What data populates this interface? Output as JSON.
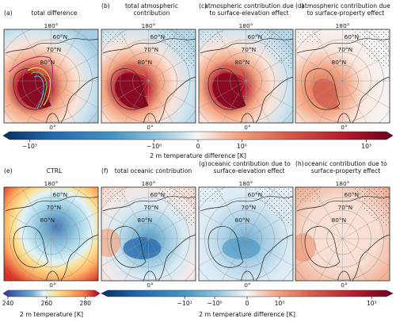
{
  "panels": [
    {
      "id": "a",
      "letter": "(a)",
      "title": [
        "total difference"
      ],
      "lon_label": "180°",
      "lat_labels": [
        "60°N",
        "70°N",
        "80°N"
      ],
      "bottom_label": "0°",
      "field": "total"
    },
    {
      "id": "b",
      "letter": "(b)",
      "title": [
        "total atmospheric",
        "contribution"
      ],
      "lon_label": "180°",
      "lat_labels": [
        "60°N",
        "70°N",
        "80°N"
      ],
      "bottom_label": "0°",
      "field": "atm"
    },
    {
      "id": "c",
      "letter": "(c)",
      "title": [
        "atmospheric contribution due",
        "to surface-elevation effect"
      ],
      "lon_label": "180°",
      "lat_labels": [
        "60°N",
        "70°N",
        "80°N"
      ],
      "bottom_label": "0°",
      "field": "atm_elev"
    },
    {
      "id": "d",
      "letter": "(d)",
      "title": [
        "atmospheric contribution due",
        "to surface-property effect"
      ],
      "lon_label": "180°",
      "lat_labels": [
        "60°N",
        "70°N",
        "80°N"
      ],
      "bottom_label": "0°",
      "field": "atm_prop"
    },
    {
      "id": "e",
      "letter": "(e)",
      "title": [
        "CTRL"
      ],
      "lon_label": "180°",
      "lat_labels": [
        "60°N",
        "70°N",
        "80°N"
      ],
      "bottom_label": "0°",
      "field": "ctrl"
    },
    {
      "id": "f",
      "letter": "(f)",
      "title": [
        "total oceanic contribution"
      ],
      "lon_label": "180°",
      "lat_labels": [
        "60°N",
        "70°N",
        "80°N"
      ],
      "bottom_label": "0°",
      "field": "ocn"
    },
    {
      "id": "g",
      "letter": "(g)",
      "title": [
        "oceanic contribution due to",
        "surface-elevation effect"
      ],
      "lon_label": "180°",
      "lat_labels": [
        "60°N",
        "70°N",
        "80°N"
      ],
      "bottom_label": "0°",
      "field": "ocn_elev"
    },
    {
      "id": "h",
      "letter": "(h)",
      "title": [
        "oceanic contribution due to",
        "surface-property effect"
      ],
      "lon_label": "180°",
      "lat_labels": [
        "60°N",
        "70°N",
        "80°N"
      ],
      "bottom_label": "0°",
      "field": "ocn_prop"
    }
  ],
  "colorbars": {
    "top": {
      "label": "2 m temperature difference [K]",
      "ticks": [
        {
          "value": -1000,
          "label": "−10³"
        },
        {
          "value": -1,
          "label": "−10⁰"
        },
        {
          "value": 0,
          "label": "0"
        },
        {
          "value": 1,
          "label": "10⁰"
        },
        {
          "value": 1000,
          "label": "10³"
        }
      ],
      "scale": "symlog",
      "colormap": "RdBu_r"
    },
    "ctrl": {
      "label": "2 m temperature [K]",
      "ticks": [
        {
          "value": 240,
          "label": "240"
        },
        {
          "value": 260,
          "label": "260"
        },
        {
          "value": 280,
          "label": "280"
        }
      ],
      "range": [
        240,
        285
      ],
      "colormap": "RdYlBu_r"
    },
    "bottom": {
      "label": "2 m temperature difference [K]",
      "ticks": [
        {
          "value": -10,
          "label": "−10¹"
        },
        {
          "value": -1,
          "label": "−10⁰"
        },
        {
          "value": 0,
          "label": "0"
        },
        {
          "value": 1,
          "label": "10⁰"
        },
        {
          "value": 1000,
          "label": "10³"
        }
      ],
      "scale": "symlog",
      "colormap": "RdBu_r"
    }
  },
  "colors": {
    "dark_red": "#67001f",
    "red": "#d6604d",
    "light_red": "#f4a582",
    "light_blue": "#92c5de",
    "blue": "#4393c3",
    "dark_blue": "#053061",
    "contour_magenta": "#c51b7d",
    "contour_yellow": "#f0e442",
    "contour_green": "#7fbf3f",
    "contour_cyan": "#56b4e9"
  }
}
